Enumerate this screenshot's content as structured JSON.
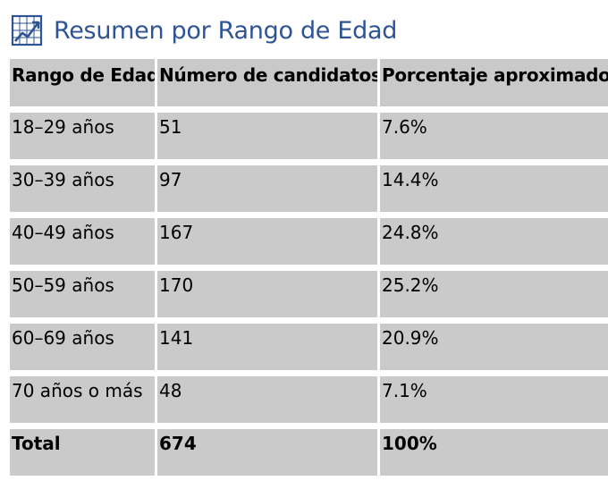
{
  "header": {
    "title": "Resumen por Rango de Edad",
    "icon": "line-chart-icon",
    "title_color": "#2f5496"
  },
  "table": {
    "columns": [
      "Rango de Edad",
      "Número de candidatos",
      "Porcentaje aproximado"
    ],
    "rows": [
      [
        "18–29 años",
        "51",
        "7.6%"
      ],
      [
        "30–39 años",
        "97",
        "14.4%"
      ],
      [
        "40–49 años",
        "167",
        "24.8%"
      ],
      [
        "50–59 años",
        "170",
        "25.2%"
      ],
      [
        "60–69 años",
        "141",
        "20.9%"
      ],
      [
        "70 años o más",
        "48",
        "7.1%"
      ]
    ],
    "total": [
      "Total",
      "674",
      "100%"
    ],
    "cell_color": "#c9c9c9"
  }
}
